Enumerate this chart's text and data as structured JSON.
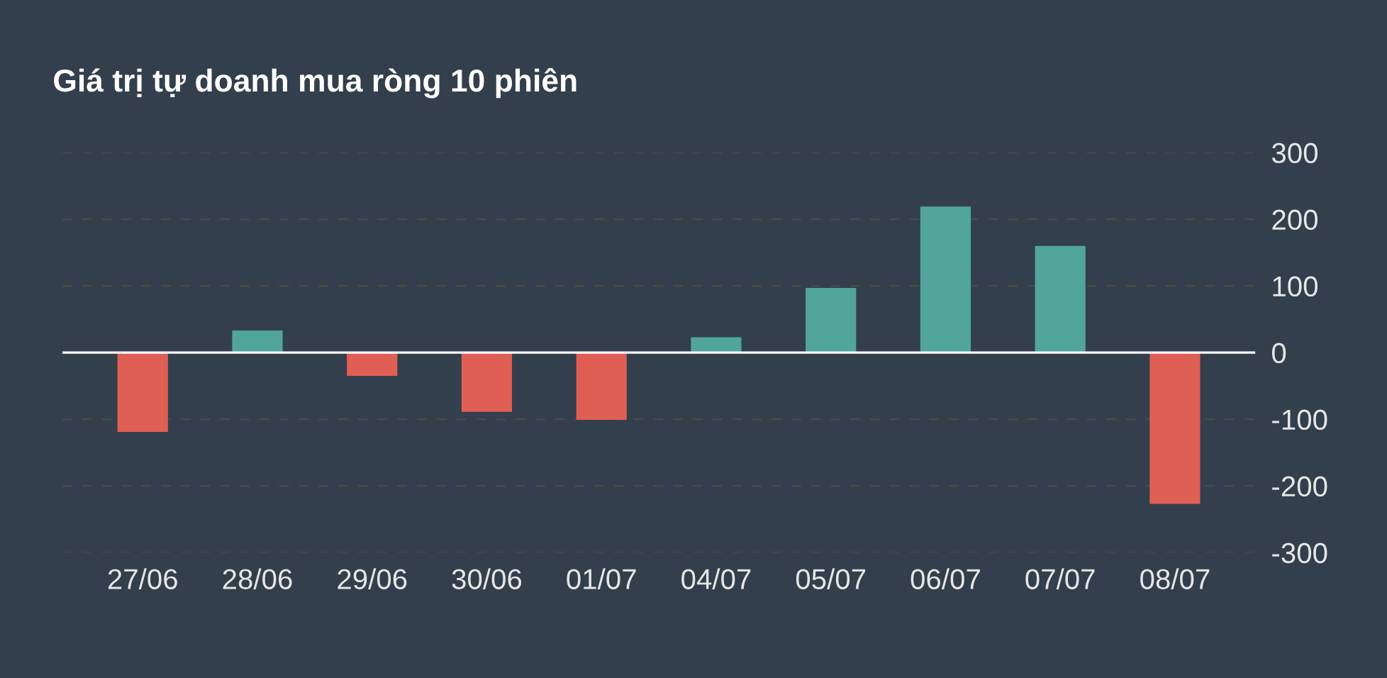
{
  "chart_data": {
    "type": "bar",
    "title": "Giá trị tự doanh mua ròng 10 phiên",
    "categories": [
      "27/06",
      "28/06",
      "29/06",
      "30/06",
      "01/07",
      "04/07",
      "05/07",
      "06/07",
      "07/07",
      "08/07"
    ],
    "values": [
      -119,
      33,
      -35,
      -89,
      -101,
      23,
      97,
      219,
      160,
      -227
    ],
    "colors": [
      "#e05f55",
      "#52a59b",
      "#e05f55",
      "#e05f55",
      "#e05f55",
      "#52a59b",
      "#52a59b",
      "#52a59b",
      "#52a59b",
      "#e05f55"
    ],
    "ylim": [
      -300,
      300
    ],
    "yticks": [
      -300,
      -200,
      -100,
      0,
      100,
      200,
      300
    ],
    "grid": "y",
    "ref_lines": [
      {
        "axis": "y",
        "value": 0,
        "color": "#ffffff"
      }
    ]
  }
}
